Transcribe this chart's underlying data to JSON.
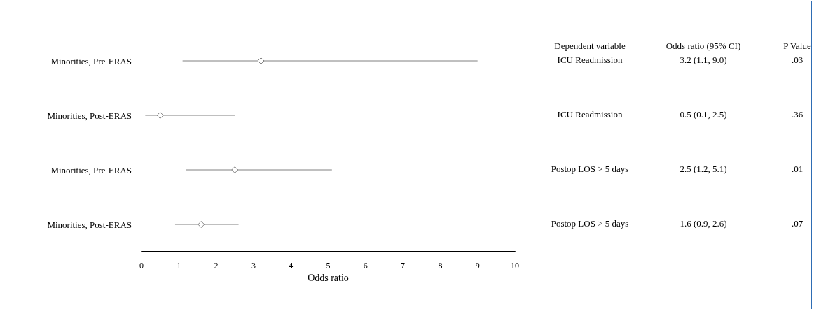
{
  "chart_data": {
    "type": "scatter",
    "orientation": "horizontal",
    "categories": [
      "Minorities, Pre-ERAS",
      "Minorities, Post-ERAS",
      "Minorities, Pre-ERAS",
      "Minorities, Post-ERAS"
    ],
    "values": [
      3.2,
      0.5,
      2.5,
      1.6
    ],
    "errors": [
      [
        1.1,
        9.0
      ],
      [
        0.1,
        2.5
      ],
      [
        1.2,
        5.1
      ],
      [
        0.9,
        2.6
      ]
    ],
    "value_labels": [
      "3.2 (1.1, 9.0)",
      "0.5 (0.1, 2.5)",
      "2.5 (1.2, 5.1)",
      "1.6 (0.9, 2.6)"
    ],
    "color": "#808080",
    "marker": "diamond",
    "xlabel": "Odds ratio",
    "xlim": [
      0,
      10
    ],
    "xticks": [
      0,
      1,
      2,
      3,
      4,
      5,
      6,
      7,
      8,
      9,
      10
    ],
    "ref_lines": [
      {
        "axis": "x",
        "value": 1,
        "line_style": "dashed",
        "color": "#000000"
      }
    ],
    "annotations": [
      "Dependent variable",
      "Odds ratio (95% CI)",
      "P Value",
      "ICU Readmission",
      ".03",
      "ICU Readmission",
      ".36",
      "Postop LOS > 5 days",
      ".01",
      "Postop LOS > 5 days",
      ".07"
    ]
  }
}
